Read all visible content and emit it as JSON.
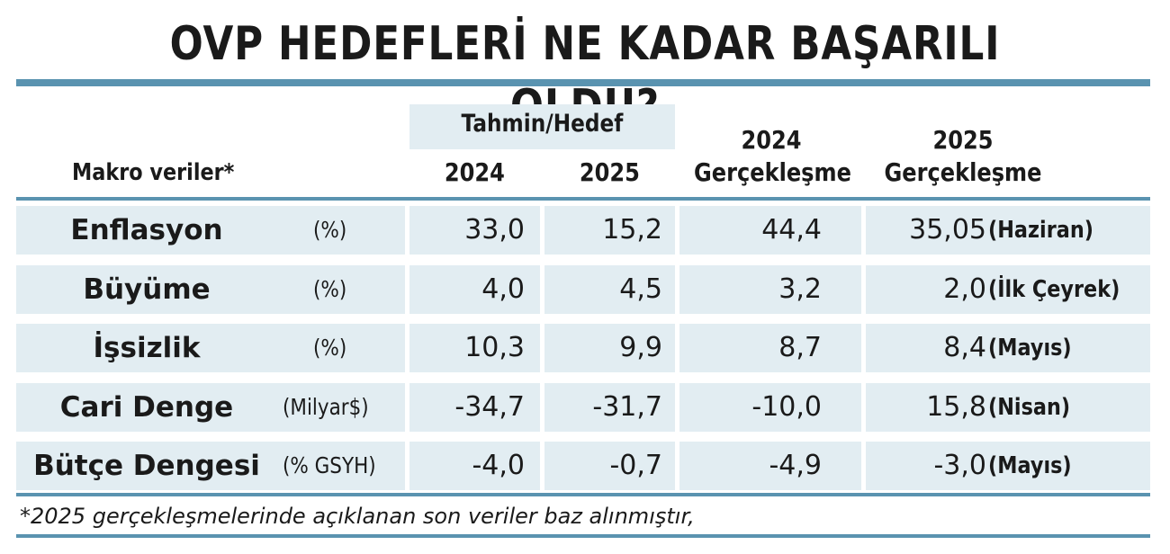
{
  "title": "OVP HEDEFLERİ NE KADAR BAŞARILI OLDU?",
  "header": {
    "row_label": "Makro veriler*",
    "group_label": "Tahmin/Hedef",
    "col_2024": "2024",
    "col_2025": "2025",
    "actual_2024_year": "2024",
    "actual_2024_label": "Gerçekleşme",
    "actual_2025_year": "2025",
    "actual_2025_label": "Gerçekleşme"
  },
  "chart_data": {
    "type": "table",
    "title": "OVP HEDEFLERİ NE KADAR BAŞARILI OLDU?",
    "columns": [
      "Makro veriler*",
      "",
      "Tahmin/Hedef 2024",
      "Tahmin/Hedef 2025",
      "2024 Gerçekleşme",
      "2025 Gerçekleşme"
    ],
    "rows": [
      {
        "label": "Enflasyon",
        "unit": "(%)",
        "target_2024": "33,0",
        "target_2025": "15,2",
        "actual_2024": "44,4",
        "actual_2025": "35,05",
        "note": "(Haziran)"
      },
      {
        "label": "Büyüme",
        "unit": "(%)",
        "target_2024": "4,0",
        "target_2025": "4,5",
        "actual_2024": "3,2",
        "actual_2025": "2,0",
        "note": "(İlk Çeyrek)"
      },
      {
        "label": "İşsizlik",
        "unit": "(%)",
        "target_2024": "10,3",
        "target_2025": "9,9",
        "actual_2024": "8,7",
        "actual_2025": "8,4",
        "note": "(Mayıs)"
      },
      {
        "label": "Cari Denge",
        "unit": "(Milyar$)",
        "target_2024": "-34,7",
        "target_2025": "-31,7",
        "actual_2024": "-10,0",
        "actual_2025": "15,8",
        "note": "(Nisan)"
      },
      {
        "label": "Bütçe Dengesi",
        "unit": "(% GSYH)",
        "target_2024": "-4,0",
        "target_2025": "-0,7",
        "actual_2024": "-4,9",
        "actual_2025": "-3,0",
        "note": "(Mayıs)"
      }
    ]
  },
  "footnote": "*2025 gerçekleşmelerinde açıklanan son veriler baz alınmıştır,",
  "colors": {
    "rule": "#5a93b0",
    "cell": "#e2edf2",
    "text": "#1a1a1a"
  }
}
